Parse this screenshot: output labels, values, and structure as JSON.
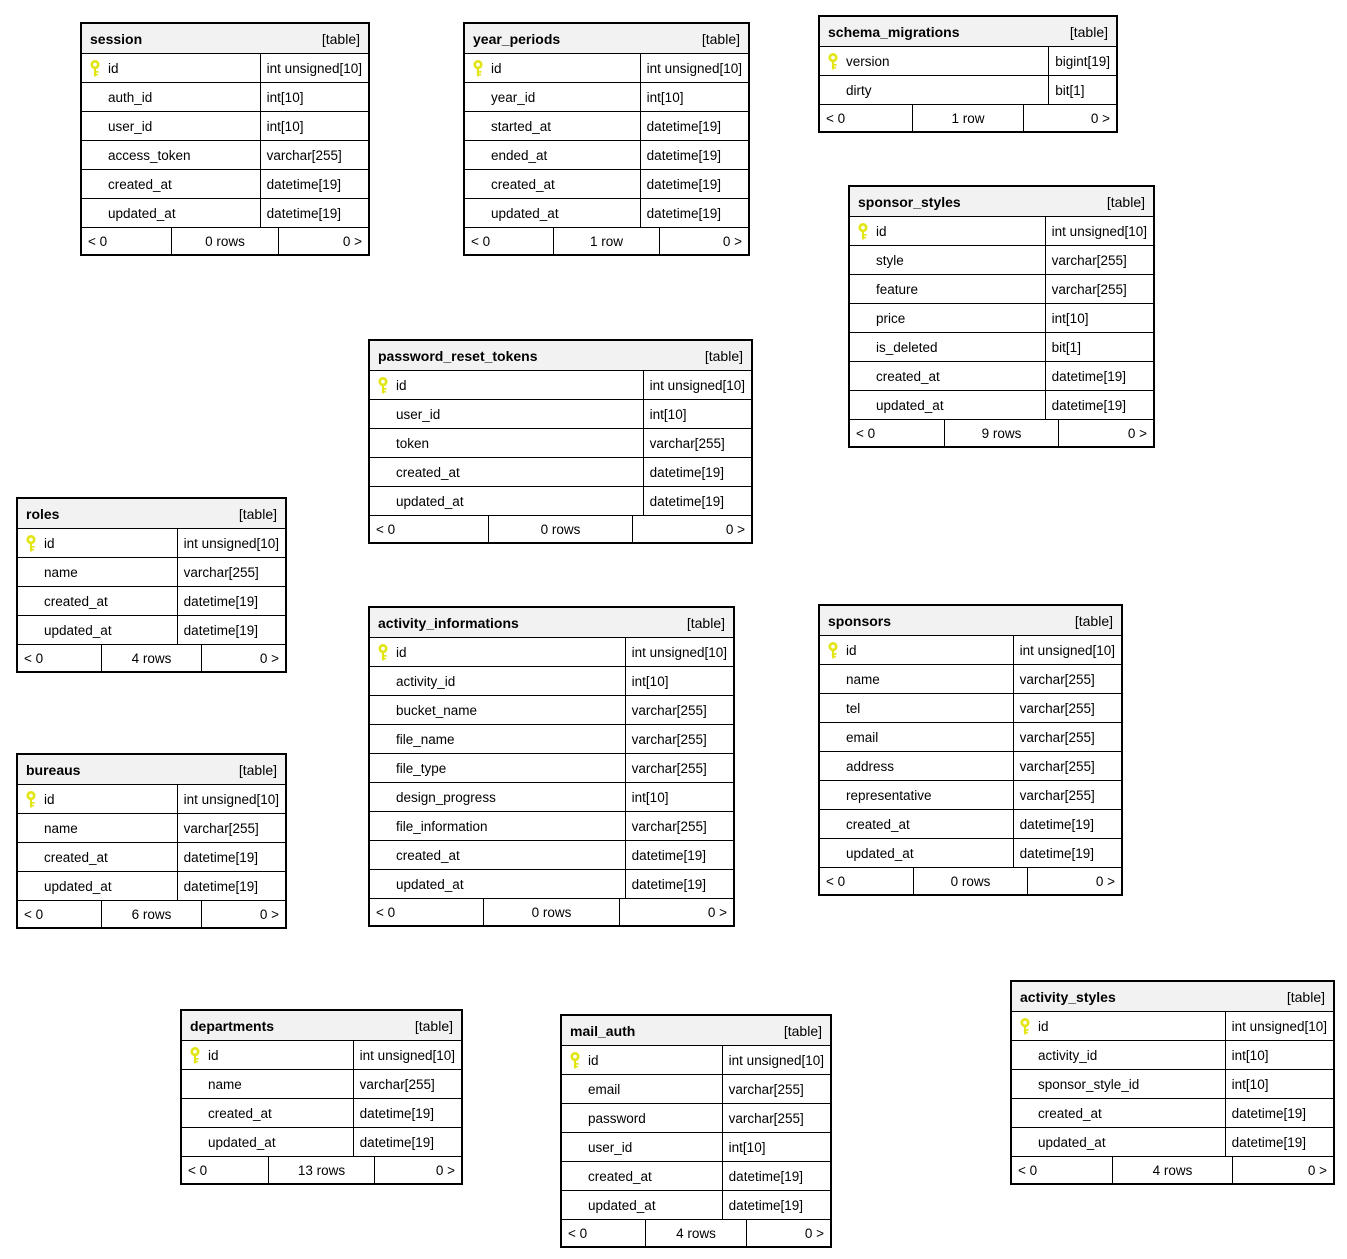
{
  "colors": {
    "primary_key_icon": "#e2e515",
    "header_background": "#f2f2f2",
    "border": "#000000"
  },
  "diagram": {
    "tables": [
      {
        "name": "session",
        "badge": "[table]",
        "columns": [
          {
            "name": "id",
            "type": "int unsigned[10]",
            "pk": true
          },
          {
            "name": "auth_id",
            "type": "int[10]",
            "pk": false
          },
          {
            "name": "user_id",
            "type": "int[10]",
            "pk": false
          },
          {
            "name": "access_token",
            "type": "varchar[255]",
            "pk": false
          },
          {
            "name": "created_at",
            "type": "datetime[19]",
            "pk": false
          },
          {
            "name": "updated_at",
            "type": "datetime[19]",
            "pk": false
          }
        ],
        "footer": {
          "left": "< 0",
          "center": "0 rows",
          "right": "0 >"
        }
      },
      {
        "name": "year_periods",
        "badge": "[table]",
        "columns": [
          {
            "name": "id",
            "type": "int unsigned[10]",
            "pk": true
          },
          {
            "name": "year_id",
            "type": "int[10]",
            "pk": false
          },
          {
            "name": "started_at",
            "type": "datetime[19]",
            "pk": false
          },
          {
            "name": "ended_at",
            "type": "datetime[19]",
            "pk": false
          },
          {
            "name": "created_at",
            "type": "datetime[19]",
            "pk": false
          },
          {
            "name": "updated_at",
            "type": "datetime[19]",
            "pk": false
          }
        ],
        "footer": {
          "left": "< 0",
          "center": "1 row",
          "right": "0 >"
        }
      },
      {
        "name": "schema_migrations",
        "badge": "[table]",
        "columns": [
          {
            "name": "version",
            "type": "bigint[19]",
            "pk": true
          },
          {
            "name": "dirty",
            "type": "bit[1]",
            "pk": false
          }
        ],
        "footer": {
          "left": "< 0",
          "center": "1 row",
          "right": "0 >"
        }
      },
      {
        "name": "sponsor_styles",
        "badge": "[table]",
        "columns": [
          {
            "name": "id",
            "type": "int unsigned[10]",
            "pk": true
          },
          {
            "name": "style",
            "type": "varchar[255]",
            "pk": false
          },
          {
            "name": "feature",
            "type": "varchar[255]",
            "pk": false
          },
          {
            "name": "price",
            "type": "int[10]",
            "pk": false
          },
          {
            "name": "is_deleted",
            "type": "bit[1]",
            "pk": false
          },
          {
            "name": "created_at",
            "type": "datetime[19]",
            "pk": false
          },
          {
            "name": "updated_at",
            "type": "datetime[19]",
            "pk": false
          }
        ],
        "footer": {
          "left": "< 0",
          "center": "9 rows",
          "right": "0 >"
        }
      },
      {
        "name": "password_reset_tokens",
        "badge": "[table]",
        "columns": [
          {
            "name": "id",
            "type": "int unsigned[10]",
            "pk": true
          },
          {
            "name": "user_id",
            "type": "int[10]",
            "pk": false
          },
          {
            "name": "token",
            "type": "varchar[255]",
            "pk": false
          },
          {
            "name": "created_at",
            "type": "datetime[19]",
            "pk": false
          },
          {
            "name": "updated_at",
            "type": "datetime[19]",
            "pk": false
          }
        ],
        "footer": {
          "left": "< 0",
          "center": "0 rows",
          "right": "0 >"
        }
      },
      {
        "name": "roles",
        "badge": "[table]",
        "columns": [
          {
            "name": "id",
            "type": "int unsigned[10]",
            "pk": true
          },
          {
            "name": "name",
            "type": "varchar[255]",
            "pk": false
          },
          {
            "name": "created_at",
            "type": "datetime[19]",
            "pk": false
          },
          {
            "name": "updated_at",
            "type": "datetime[19]",
            "pk": false
          }
        ],
        "footer": {
          "left": "< 0",
          "center": "4 rows",
          "right": "0 >"
        }
      },
      {
        "name": "activity_informations",
        "badge": "[table]",
        "columns": [
          {
            "name": "id",
            "type": "int unsigned[10]",
            "pk": true
          },
          {
            "name": "activity_id",
            "type": "int[10]",
            "pk": false
          },
          {
            "name": "bucket_name",
            "type": "varchar[255]",
            "pk": false
          },
          {
            "name": "file_name",
            "type": "varchar[255]",
            "pk": false
          },
          {
            "name": "file_type",
            "type": "varchar[255]",
            "pk": false
          },
          {
            "name": "design_progress",
            "type": "int[10]",
            "pk": false
          },
          {
            "name": "file_information",
            "type": "varchar[255]",
            "pk": false
          },
          {
            "name": "created_at",
            "type": "datetime[19]",
            "pk": false
          },
          {
            "name": "updated_at",
            "type": "datetime[19]",
            "pk": false
          }
        ],
        "footer": {
          "left": "< 0",
          "center": "0 rows",
          "right": "0 >"
        }
      },
      {
        "name": "sponsors",
        "badge": "[table]",
        "columns": [
          {
            "name": "id",
            "type": "int unsigned[10]",
            "pk": true
          },
          {
            "name": "name",
            "type": "varchar[255]",
            "pk": false
          },
          {
            "name": "tel",
            "type": "varchar[255]",
            "pk": false
          },
          {
            "name": "email",
            "type": "varchar[255]",
            "pk": false
          },
          {
            "name": "address",
            "type": "varchar[255]",
            "pk": false
          },
          {
            "name": "representative",
            "type": "varchar[255]",
            "pk": false
          },
          {
            "name": "created_at",
            "type": "datetime[19]",
            "pk": false
          },
          {
            "name": "updated_at",
            "type": "datetime[19]",
            "pk": false
          }
        ],
        "footer": {
          "left": "< 0",
          "center": "0 rows",
          "right": "0 >"
        }
      },
      {
        "name": "bureaus",
        "badge": "[table]",
        "columns": [
          {
            "name": "id",
            "type": "int unsigned[10]",
            "pk": true
          },
          {
            "name": "name",
            "type": "varchar[255]",
            "pk": false
          },
          {
            "name": "created_at",
            "type": "datetime[19]",
            "pk": false
          },
          {
            "name": "updated_at",
            "type": "datetime[19]",
            "pk": false
          }
        ],
        "footer": {
          "left": "< 0",
          "center": "6 rows",
          "right": "0 >"
        }
      },
      {
        "name": "departments",
        "badge": "[table]",
        "columns": [
          {
            "name": "id",
            "type": "int unsigned[10]",
            "pk": true
          },
          {
            "name": "name",
            "type": "varchar[255]",
            "pk": false
          },
          {
            "name": "created_at",
            "type": "datetime[19]",
            "pk": false
          },
          {
            "name": "updated_at",
            "type": "datetime[19]",
            "pk": false
          }
        ],
        "footer": {
          "left": "< 0",
          "center": "13 rows",
          "right": "0 >"
        }
      },
      {
        "name": "mail_auth",
        "badge": "[table]",
        "columns": [
          {
            "name": "id",
            "type": "int unsigned[10]",
            "pk": true
          },
          {
            "name": "email",
            "type": "varchar[255]",
            "pk": false
          },
          {
            "name": "password",
            "type": "varchar[255]",
            "pk": false
          },
          {
            "name": "user_id",
            "type": "int[10]",
            "pk": false
          },
          {
            "name": "created_at",
            "type": "datetime[19]",
            "pk": false
          },
          {
            "name": "updated_at",
            "type": "datetime[19]",
            "pk": false
          }
        ],
        "footer": {
          "left": "< 0",
          "center": "4 rows",
          "right": "0 >"
        }
      },
      {
        "name": "activity_styles",
        "badge": "[table]",
        "columns": [
          {
            "name": "id",
            "type": "int unsigned[10]",
            "pk": true
          },
          {
            "name": "activity_id",
            "type": "int[10]",
            "pk": false
          },
          {
            "name": "sponsor_style_id",
            "type": "int[10]",
            "pk": false
          },
          {
            "name": "created_at",
            "type": "datetime[19]",
            "pk": false
          },
          {
            "name": "updated_at",
            "type": "datetime[19]",
            "pk": false
          }
        ],
        "footer": {
          "left": "< 0",
          "center": "4 rows",
          "right": "0 >"
        }
      }
    ]
  }
}
